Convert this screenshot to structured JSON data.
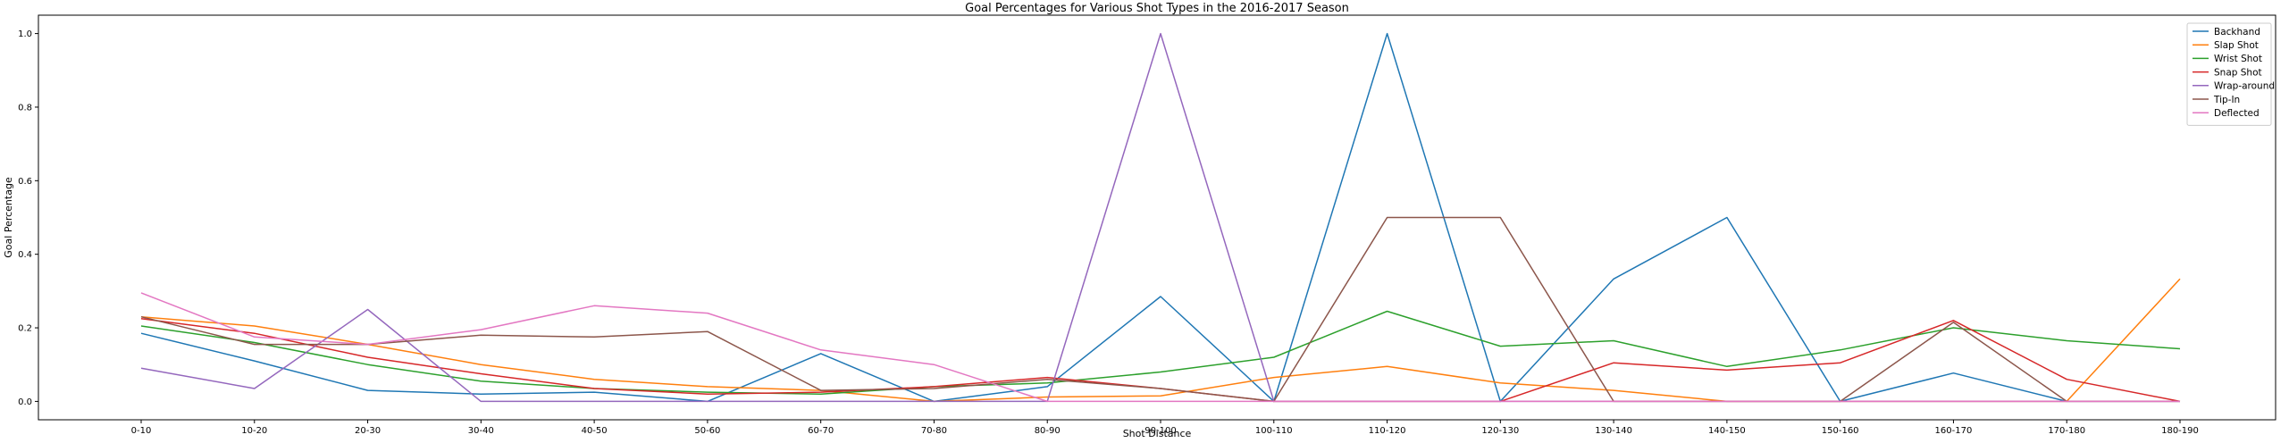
{
  "chart_data": {
    "type": "line",
    "title": "Goal Percentages for Various Shot Types in the 2016-2017 Season",
    "xlabel": "Shot Distance",
    "ylabel": "Goal Percentage",
    "categories": [
      "0-10",
      "10-20",
      "20-30",
      "30-40",
      "40-50",
      "50-60",
      "60-70",
      "70-80",
      "80-90",
      "90-100",
      "100-110",
      "110-120",
      "120-130",
      "130-140",
      "140-150",
      "150-160",
      "160-170",
      "170-180",
      "180-190"
    ],
    "yticks": [
      "0.0",
      "0.2",
      "0.4",
      "0.6",
      "0.8",
      "1.0"
    ],
    "ylim": [
      -0.05,
      1.05
    ],
    "grid": false,
    "legend_position": "top-right",
    "series": [
      {
        "name": "Backhand",
        "color": "#1f77b4",
        "values": [
          0.185,
          0.11,
          0.03,
          0.02,
          0.025,
          0.0,
          0.13,
          0.0,
          0.04,
          0.285,
          0.0,
          1.0,
          0.0,
          0.333,
          0.5,
          0.0,
          0.077,
          0.0,
          null
        ]
      },
      {
        "name": "Slap Shot",
        "color": "#ff7f0e",
        "values": [
          0.23,
          0.205,
          0.155,
          0.1,
          0.06,
          0.04,
          0.03,
          0.0,
          0.012,
          0.015,
          0.065,
          0.095,
          0.05,
          0.03,
          0.0,
          0.0,
          0.0,
          0.0,
          0.333
        ]
      },
      {
        "name": "Wrist Shot",
        "color": "#2ca02c",
        "values": [
          0.205,
          0.16,
          0.1,
          0.055,
          0.035,
          0.025,
          0.02,
          0.04,
          0.05,
          0.08,
          0.12,
          0.245,
          0.15,
          0.165,
          0.095,
          0.14,
          0.2,
          0.165,
          0.143
        ]
      },
      {
        "name": "Snap Shot",
        "color": "#d62728",
        "values": [
          0.225,
          0.185,
          0.12,
          0.075,
          0.035,
          0.02,
          0.025,
          0.04,
          0.065,
          0.035,
          0.0,
          0.0,
          0.0,
          0.105,
          0.085,
          0.105,
          0.22,
          0.06,
          0.0
        ]
      },
      {
        "name": "Wrap-around",
        "color": "#9467bd",
        "values": [
          0.09,
          0.035,
          0.25,
          0.0,
          0.0,
          0.0,
          0.0,
          0.0,
          0.0,
          1.0,
          0.0,
          0.0,
          0.0,
          0.0,
          0.0,
          0.0,
          0.0,
          0.0,
          0.0
        ]
      },
      {
        "name": "Tip-In",
        "color": "#8c564b",
        "values": [
          0.23,
          0.155,
          0.155,
          0.18,
          0.175,
          0.19,
          0.03,
          0.035,
          0.06,
          0.035,
          0.0,
          0.5,
          0.5,
          0.0,
          0.0,
          0.0,
          0.215,
          0.0,
          0.0
        ]
      },
      {
        "name": "Deflected",
        "color": "#e377c2",
        "values": [
          0.295,
          0.175,
          0.155,
          0.195,
          0.26,
          0.24,
          0.14,
          0.1,
          0.0,
          0.0,
          0.0,
          0.0,
          0.0,
          0.0,
          0.0,
          0.0,
          0.0,
          0.0,
          0.0
        ]
      }
    ]
  }
}
